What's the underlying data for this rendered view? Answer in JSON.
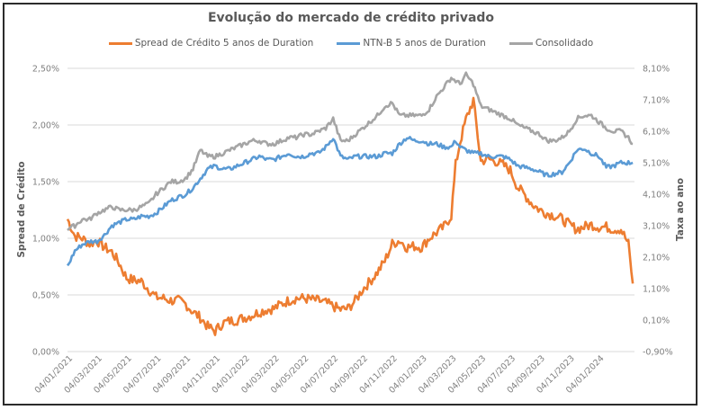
{
  "chart_data": {
    "type": "line",
    "title": "Evolução do mercado de crédito privado",
    "ylabel": "Spread de Crédito",
    "y2label": "Taxa ao ano",
    "xlabel": "",
    "legend_position": "top",
    "grid": true,
    "ylim": [
      0.0,
      2.5
    ],
    "y2lim": [
      -0.9,
      8.1
    ],
    "y_ticks": [
      "0,00%",
      "0,50%",
      "1,00%",
      "1,50%",
      "2,00%",
      "2,50%"
    ],
    "y2_ticks": [
      "-0,90%",
      "0,10%",
      "1,10%",
      "2,10%",
      "3,10%",
      "4,10%",
      "5,10%",
      "6,10%",
      "7,10%",
      "8,10%"
    ],
    "x_ticks": [
      "04/01/2021",
      "04/03/2021",
      "04/05/2021",
      "04/07/2021",
      "04/09/2021",
      "04/11/2021",
      "04/01/2022",
      "04/03/2022",
      "04/05/2022",
      "04/07/2022",
      "04/09/2022",
      "04/11/2022",
      "04/01/2023",
      "04/03/2023",
      "04/05/2023",
      "04/07/2023",
      "04/09/2023",
      "04/11/2023",
      "04/01/2024"
    ],
    "x_months": [
      0,
      0.5,
      1,
      1.5,
      2,
      2.5,
      3,
      3.5,
      4,
      4.5,
      5,
      5.5,
      6,
      6.5,
      7,
      7.5,
      8,
      8.5,
      9,
      9.5,
      10,
      10.5,
      11,
      11.5,
      12,
      12.5,
      13,
      13.5,
      14,
      14.5,
      15,
      15.5,
      16,
      16.5,
      17,
      17.5,
      18,
      18.5,
      19,
      19.5,
      20,
      20.5,
      21,
      21.5,
      22,
      22.5,
      23,
      23.5,
      24,
      24.5,
      25,
      25.5,
      26,
      26.3,
      26.6,
      27,
      27.5,
      28,
      28.5,
      29,
      29.5,
      30,
      30.5,
      31,
      31.5,
      32,
      32.5,
      33,
      33.5,
      34,
      34.5,
      35,
      35.5,
      36,
      36.5,
      37,
      37.5,
      38,
      38.3
    ],
    "series": [
      {
        "name": "Spread de Crédito 5 anos de Duration",
        "axis": "left",
        "color": "#ed7d31",
        "values": [
          1.17,
          1.02,
          1.0,
          0.95,
          0.98,
          0.92,
          0.88,
          0.78,
          0.65,
          0.63,
          0.62,
          0.55,
          0.48,
          0.47,
          0.45,
          0.45,
          0.42,
          0.35,
          0.3,
          0.22,
          0.18,
          0.25,
          0.27,
          0.28,
          0.3,
          0.32,
          0.35,
          0.37,
          0.38,
          0.42,
          0.45,
          0.47,
          0.47,
          0.46,
          0.45,
          0.43,
          0.4,
          0.37,
          0.38,
          0.45,
          0.55,
          0.62,
          0.7,
          0.8,
          0.95,
          0.98,
          0.92,
          0.93,
          0.92,
          1.0,
          1.05,
          1.1,
          1.2,
          1.65,
          1.85,
          2.05,
          2.22,
          1.68,
          1.7,
          1.68,
          1.65,
          1.6,
          1.45,
          1.38,
          1.3,
          1.25,
          1.22,
          1.2,
          1.17,
          1.12,
          1.08,
          1.1,
          1.12,
          1.1,
          1.1,
          1.08,
          1.08,
          0.95,
          0.6,
          0.57
        ]
      },
      {
        "name": "NTN-B 5 anos de Duration",
        "axis": "right",
        "color": "#5b9bd5",
        "values": [
          1.8,
          2.3,
          2.5,
          2.6,
          2.6,
          2.8,
          3.1,
          3.2,
          3.3,
          3.3,
          3.4,
          3.4,
          3.5,
          3.7,
          3.9,
          4.0,
          4.1,
          4.3,
          4.6,
          4.9,
          5.0,
          4.9,
          4.9,
          5.0,
          5.1,
          5.2,
          5.3,
          5.2,
          5.2,
          5.3,
          5.4,
          5.3,
          5.3,
          5.4,
          5.4,
          5.6,
          5.9,
          5.3,
          5.2,
          5.3,
          5.3,
          5.3,
          5.3,
          5.4,
          5.4,
          5.7,
          5.9,
          5.8,
          5.8,
          5.7,
          5.7,
          5.6,
          5.6,
          5.8,
          5.6,
          5.5,
          5.4,
          5.4,
          5.3,
          5.3,
          5.3,
          5.2,
          5.0,
          4.95,
          4.9,
          4.8,
          4.7,
          4.75,
          4.8,
          5.1,
          5.5,
          5.55,
          5.4,
          5.3,
          4.95,
          5.0,
          5.1,
          5.1,
          5.1,
          5.1
        ]
      },
      {
        "name": "Consolidado",
        "axis": "right",
        "color": "#a5a5a5",
        "values": [
          3.0,
          3.1,
          3.3,
          3.3,
          3.5,
          3.6,
          3.7,
          3.6,
          3.6,
          3.6,
          3.7,
          3.8,
          4.1,
          4.3,
          4.5,
          4.5,
          4.6,
          4.9,
          5.5,
          5.3,
          5.3,
          5.4,
          5.5,
          5.6,
          5.7,
          5.8,
          5.8,
          5.7,
          5.7,
          5.8,
          5.9,
          5.9,
          6.0,
          6.0,
          6.1,
          6.2,
          6.5,
          5.8,
          5.8,
          6.0,
          6.2,
          6.4,
          6.6,
          6.9,
          7.0,
          6.6,
          6.6,
          6.6,
          6.6,
          6.8,
          7.2,
          7.5,
          7.8,
          7.7,
          7.6,
          7.9,
          7.6,
          6.9,
          6.8,
          6.7,
          6.6,
          6.5,
          6.3,
          6.2,
          6.1,
          6.0,
          5.8,
          5.8,
          5.9,
          6.1,
          6.5,
          6.6,
          6.6,
          6.4,
          6.2,
          6.1,
          6.1,
          5.9,
          5.7,
          5.6
        ]
      }
    ]
  }
}
